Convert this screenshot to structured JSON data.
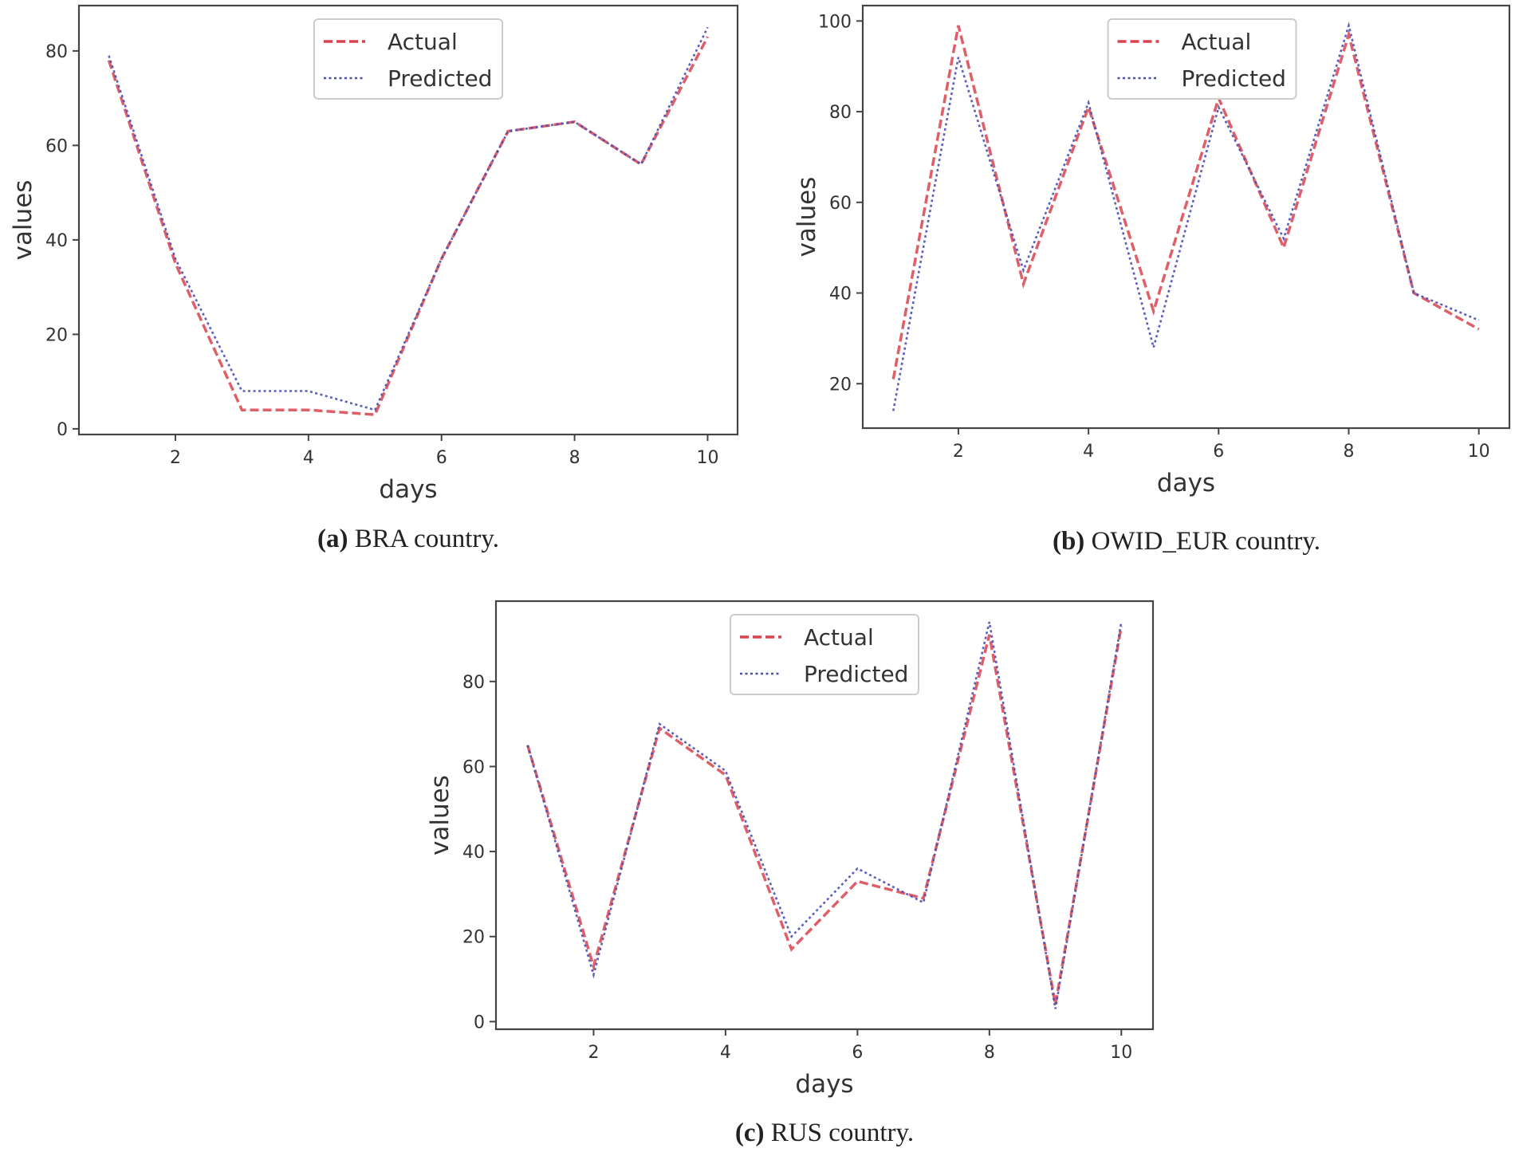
{
  "colors": {
    "actual": "#d9434f",
    "predicted": "#4a4fb0",
    "axis": "#444444"
  },
  "chart_data": [
    {
      "type": "line",
      "caption_label": "(a)",
      "caption_text": "BRA country.",
      "xlabel": "days",
      "ylabel": "values",
      "xlim": [
        0.55,
        10.45
      ],
      "ylim": [
        -1.2,
        89.6
      ],
      "xticks": [
        2,
        4,
        6,
        8,
        10
      ],
      "yticks": [
        0,
        20,
        40,
        60,
        80
      ],
      "legend": "top-center",
      "grid": false,
      "x": [
        1,
        2,
        3,
        4,
        5,
        6,
        7,
        8,
        9,
        10
      ],
      "series": [
        {
          "name": "Actual",
          "style": "dashed",
          "values": [
            78,
            35,
            4,
            4,
            3,
            36,
            63,
            65,
            56,
            83
          ]
        },
        {
          "name": "Predicted",
          "style": "dotted",
          "values": [
            79,
            36,
            8,
            8,
            4,
            36,
            63,
            65,
            56,
            85
          ]
        }
      ]
    },
    {
      "type": "line",
      "caption_label": "(b)",
      "caption_text": "OWID_EUR country.",
      "xlabel": "days",
      "ylabel": "values",
      "xlim": [
        0.53,
        10.47
      ],
      "ylim": [
        10.2,
        103.4
      ],
      "xticks": [
        2,
        4,
        6,
        8,
        10
      ],
      "yticks": [
        20,
        40,
        60,
        80,
        100
      ],
      "legend": "top-center",
      "grid": false,
      "x": [
        1,
        2,
        3,
        4,
        5,
        6,
        7,
        8,
        9,
        10
      ],
      "series": [
        {
          "name": "Actual",
          "style": "dashed",
          "values": [
            21,
            99,
            42,
            81,
            36,
            83,
            50,
            97,
            40,
            32
          ]
        },
        {
          "name": "Predicted",
          "style": "dotted",
          "values": [
            14,
            92,
            45,
            82,
            28,
            81,
            52,
            99,
            40,
            34
          ]
        }
      ]
    },
    {
      "type": "line",
      "caption_label": "(c)",
      "caption_text": "RUS country.",
      "xlabel": "days",
      "ylabel": "values",
      "xlim": [
        0.52,
        10.48
      ],
      "ylim": [
        -1.8,
        98.9
      ],
      "xticks": [
        2,
        4,
        6,
        8,
        10
      ],
      "yticks": [
        0,
        20,
        40,
        60,
        80
      ],
      "legend": "top-center",
      "grid": false,
      "x": [
        1,
        2,
        3,
        4,
        5,
        6,
        7,
        8,
        9,
        10
      ],
      "series": [
        {
          "name": "Actual",
          "style": "dashed",
          "values": [
            65,
            13,
            69,
            58,
            17,
            33,
            29,
            91,
            4,
            93
          ]
        },
        {
          "name": "Predicted",
          "style": "dotted",
          "values": [
            65,
            11,
            70,
            59,
            20,
            36,
            28,
            94,
            3,
            94
          ]
        }
      ]
    }
  ]
}
